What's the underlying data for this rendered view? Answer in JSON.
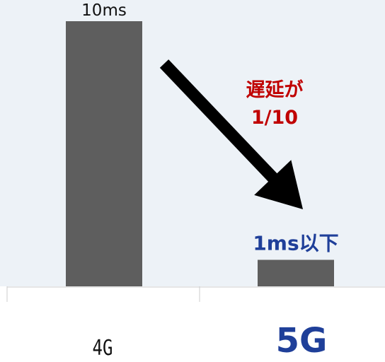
{
  "colors": {
    "plot_background": "#edf2f7",
    "bar": "#5e5e5e",
    "arrow": "#000000",
    "annotation_red": "#c00000",
    "highlight_blue": "#1f3f99",
    "axis_line": "#cccccc",
    "label_dark": "#111111"
  },
  "chart_data": {
    "type": "bar",
    "categories": [
      "4G",
      "5G"
    ],
    "values": [
      10,
      1
    ],
    "unit": "ms",
    "ylim": [
      0,
      10.8
    ],
    "grid": false,
    "legend": "none",
    "data_labels": [
      "10ms",
      "1ms以下"
    ],
    "annotation": {
      "lines": [
        "遅延が",
        "1/10"
      ]
    }
  }
}
